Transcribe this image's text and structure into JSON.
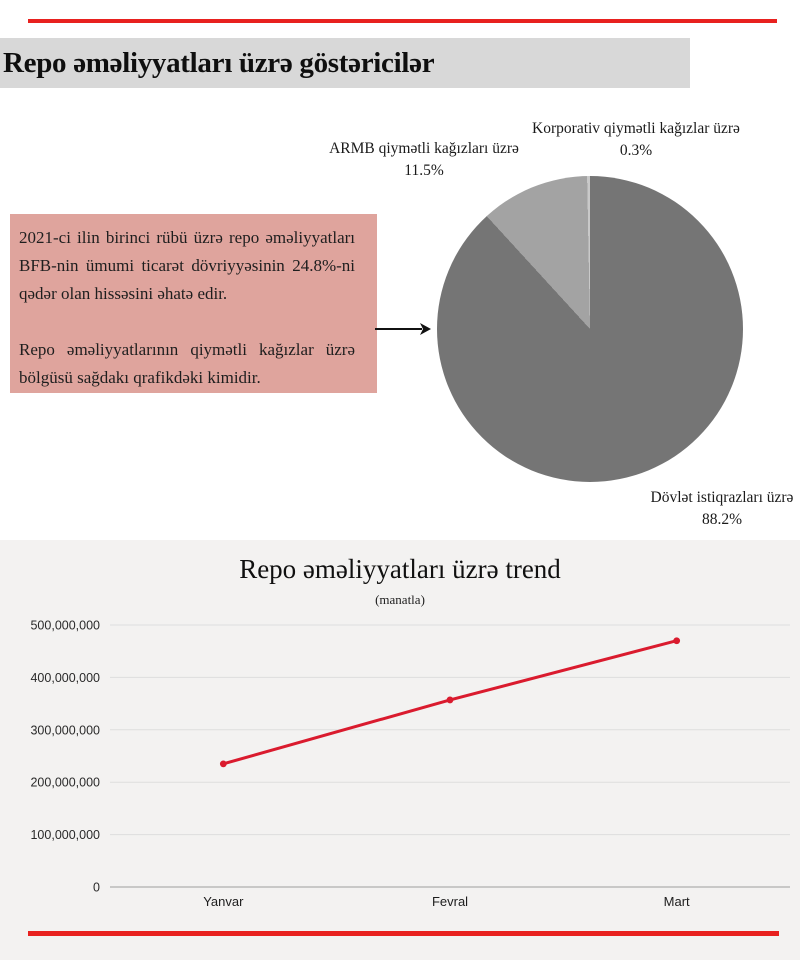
{
  "page": {
    "title": "Repo əməliyyatları üzrə göstəricilər",
    "title_background": "#d8d8d8",
    "accent_red": "#e8211f",
    "section_background": "#f3f2f1"
  },
  "info_box": {
    "background": "#dfa49d",
    "paragraph1": "2021-ci ilin birinci rübü üzrə repo əməliyyatları BFB-nin ümumi ticarət dövriyyəsinin 24.8%-ni qədər olan hissəsini əhatə edir.",
    "paragraph2": "Repo əməliyyatlarının qiymətli kağızlar üzrə bölgüsü sağdakı qrafikdəki kimidir."
  },
  "chart_data": [
    {
      "type": "pie",
      "start_angle_deg": 0,
      "direction": "clockwise",
      "slices": [
        {
          "label": "Dövlət istiqrazları üzrə",
          "value": 88.2,
          "pct_label": "88.2%",
          "color": "#757575"
        },
        {
          "label": "ARMB qiymətli kağızları üzrə",
          "value": 11.5,
          "pct_label": "11.5%",
          "color": "#a3a3a3"
        },
        {
          "label": "Korporativ qiymətli kağızlar üzrə",
          "value": 0.3,
          "pct_label": "0.3%",
          "color": "#c9c9c9"
        }
      ]
    },
    {
      "type": "line",
      "title": "Repo əməliyyatları üzrə trend",
      "subtitle": "(manatla)",
      "categories": [
        "Yanvar",
        "Fevral",
        "Mart"
      ],
      "series": [
        {
          "name": "Repo əməliyyatları",
          "values": [
            235000000,
            357000000,
            470000000
          ]
        }
      ],
      "ylim": [
        0,
        500000000
      ],
      "ytick_step": 100000000,
      "ytick_labels": [
        "0",
        "100,000,000",
        "200,000,000",
        "300,000,000",
        "400,000,000",
        "500,000,000"
      ],
      "line_color": "#da1b2e",
      "grid": true,
      "legend": "none",
      "background": "#f3f2f1"
    }
  ]
}
